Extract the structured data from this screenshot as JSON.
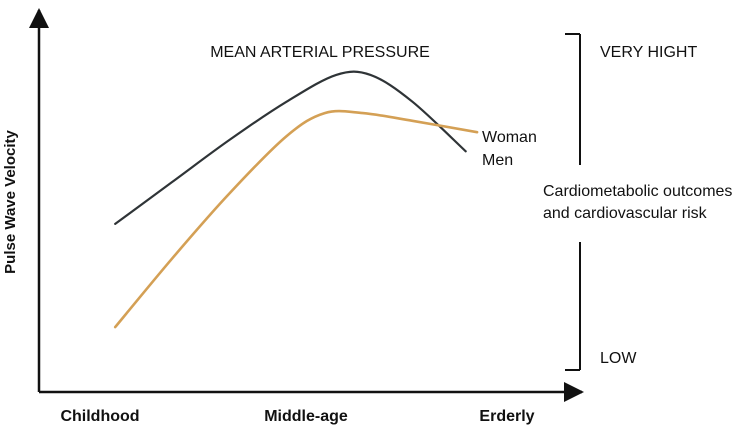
{
  "chart_data": {
    "type": "line",
    "title": "MEAN ARTERIAL PRESSURE",
    "xlabel": "",
    "ylabel": "Pulse Wave Velocity",
    "categories": [
      "Childhood",
      "Middle-age",
      "Erderly"
    ],
    "x": [
      0,
      0.5,
      1
    ],
    "xlim": [
      -0.2,
      1.22
    ],
    "ylim": [
      0,
      100
    ],
    "series": [
      {
        "name": "Men",
        "color": "#2f3437",
        "points": [
          [
            0.0,
            44
          ],
          [
            0.15,
            55
          ],
          [
            0.3,
            66
          ],
          [
            0.45,
            76
          ],
          [
            0.58,
            83
          ],
          [
            0.67,
            83
          ],
          [
            0.78,
            76
          ],
          [
            0.92,
            63
          ]
        ]
      },
      {
        "name": "Woman",
        "color": "#d4a055",
        "points": [
          [
            0.0,
            17
          ],
          [
            0.15,
            35
          ],
          [
            0.3,
            52
          ],
          [
            0.45,
            67
          ],
          [
            0.55,
            73
          ],
          [
            0.65,
            73
          ],
          [
            0.78,
            71
          ],
          [
            0.95,
            68
          ]
        ]
      }
    ],
    "legend": "inline-right",
    "grid": false
  },
  "risk_scale": {
    "high_label": "VERY HIGHT",
    "low_label": "LOW",
    "description_line1": "Cardiometabolic outcomes",
    "description_line2": "and cardiovascular risk",
    "color": "#111111"
  }
}
